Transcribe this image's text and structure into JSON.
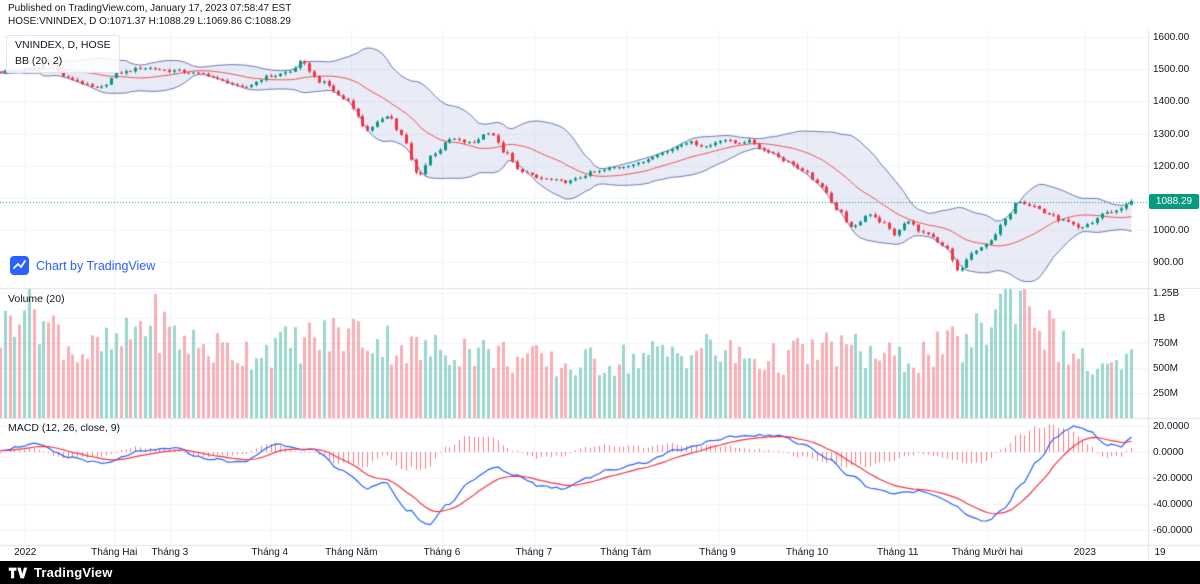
{
  "header": {
    "published_line": "Published on TradingView.com, January 17, 2023 07:58:47 EST",
    "symbol_line": "HOSE:VNINDEX, D O:1071.37 H:1088.29 L:1069.86 C:1088.29"
  },
  "panes": {
    "price": {
      "title": "VNINDEX, D, HOSE",
      "indicator": "BB (20, 2)"
    },
    "volume": {
      "title": "Volume (20)"
    },
    "macd": {
      "title": "MACD (12, 26, close, 9)"
    }
  },
  "watermark": {
    "label": "Chart by TradingView"
  },
  "footer": {
    "brand": "TradingView"
  },
  "price_scale": {
    "ticks": [
      {
        "label": "1600.00",
        "value": 1600
      },
      {
        "label": "1500.00",
        "value": 1500
      },
      {
        "label": "1400.00",
        "value": 1400
      },
      {
        "label": "1300.00",
        "value": 1300
      },
      {
        "label": "1200.00",
        "value": 1200
      },
      {
        "label": "1000.00",
        "value": 1000
      },
      {
        "label": "900.00",
        "value": 900
      }
    ],
    "last_price": {
      "label": "1088.29",
      "value": 1088.29,
      "color": "#089981"
    }
  },
  "volume_scale": {
    "ticks": [
      {
        "label": "1.25B",
        "value": 1250
      },
      {
        "label": "1B",
        "value": 1000
      },
      {
        "label": "750M",
        "value": 750
      },
      {
        "label": "500M",
        "value": 500
      },
      {
        "label": "250M",
        "value": 250
      }
    ]
  },
  "macd_scale": {
    "ticks": [
      {
        "label": "20.0000",
        "value": 20
      },
      {
        "label": "0.0000",
        "value": 0
      },
      {
        "label": "-20.0000",
        "value": -20
      },
      {
        "label": "-40.0000",
        "value": -40
      },
      {
        "label": "-60.0000",
        "value": -60
      }
    ]
  },
  "time_scale": {
    "labels": [
      {
        "label": "2022",
        "f": 0.022
      },
      {
        "label": "Tháng Hai",
        "f": 0.0995
      },
      {
        "label": "Tháng 3",
        "f": 0.148
      },
      {
        "label": "Tháng 4",
        "f": 0.235
      },
      {
        "label": "Tháng Năm",
        "f": 0.306
      },
      {
        "label": "Tháng 6",
        "f": 0.385
      },
      {
        "label": "Tháng 7",
        "f": 0.465
      },
      {
        "label": "Tháng Tám",
        "f": 0.545
      },
      {
        "label": "Tháng 9",
        "f": 0.625
      },
      {
        "label": "Tháng 10",
        "f": 0.703
      },
      {
        "label": "Tháng 11",
        "f": 0.782
      },
      {
        "label": "Tháng Mười hai",
        "f": 0.86
      },
      {
        "label": "2023",
        "f": 0.945
      }
    ],
    "next_label": "19"
  },
  "colors": {
    "up": "#089981",
    "down": "#f23645",
    "vol_up": "rgba(8,153,129,0.4)",
    "vol_down": "rgba(242,54,69,0.4)",
    "bb_fill": "rgba(101,110,196,0.14)",
    "bb_edge": "rgba(73,89,159,0.8)",
    "bb_basis": "#ef5350",
    "macd": "#2962ff",
    "signal": "#f23645",
    "hist": "#f77c80",
    "last_price": "#089981",
    "grid": "#f0f3fa",
    "separator": "#e0e3eb",
    "text": "#131722",
    "accent": "#2962ff"
  },
  "chart_data": [
    {
      "type": "candlestick",
      "symbol": "VNINDEX",
      "exchange": "HOSE",
      "interval": "D",
      "overlays": [
        "Bollinger Bands (20, 2)"
      ],
      "ylim": [
        820,
        1622
      ],
      "gridlines": [
        1600,
        1500,
        1400,
        1300,
        1200,
        1100,
        1000,
        900
      ],
      "bars": 235,
      "last_close": 1088.29,
      "ohlc_last": {
        "open": 1071.37,
        "high": 1088.29,
        "low": 1069.86,
        "close": 1088.29
      },
      "close_anchors": [
        [
          0.0,
          1492
        ],
        [
          0.033,
          1500
        ],
        [
          0.038,
          1528
        ],
        [
          0.06,
          1470
        ],
        [
          0.085,
          1440
        ],
        [
          0.105,
          1490
        ],
        [
          0.125,
          1505
        ],
        [
          0.15,
          1495
        ],
        [
          0.176,
          1485
        ],
        [
          0.195,
          1462
        ],
        [
          0.21,
          1442
        ],
        [
          0.235,
          1478
        ],
        [
          0.253,
          1492
        ],
        [
          0.261,
          1522
        ],
        [
          0.28,
          1460
        ],
        [
          0.301,
          1406
        ],
        [
          0.32,
          1312
        ],
        [
          0.338,
          1358
        ],
        [
          0.349,
          1295
        ],
        [
          0.364,
          1172
        ],
        [
          0.378,
          1240
        ],
        [
          0.393,
          1283
        ],
        [
          0.41,
          1270
        ],
        [
          0.426,
          1305
        ],
        [
          0.44,
          1240
        ],
        [
          0.452,
          1185
        ],
        [
          0.47,
          1160
        ],
        [
          0.493,
          1150
        ],
        [
          0.518,
          1180
        ],
        [
          0.536,
          1195
        ],
        [
          0.554,
          1206
        ],
        [
          0.575,
          1240
        ],
        [
          0.599,
          1274
        ],
        [
          0.615,
          1260
        ],
        [
          0.629,
          1282
        ],
        [
          0.641,
          1270
        ],
        [
          0.651,
          1277
        ],
        [
          0.668,
          1245
        ],
        [
          0.687,
          1211
        ],
        [
          0.7,
          1180
        ],
        [
          0.716,
          1132
        ],
        [
          0.73,
          1060
        ],
        [
          0.742,
          1006
        ],
        [
          0.757,
          1051
        ],
        [
          0.77,
          1020
        ],
        [
          0.779,
          986
        ],
        [
          0.79,
          1027
        ],
        [
          0.805,
          990
        ],
        [
          0.823,
          947
        ],
        [
          0.834,
          874
        ],
        [
          0.848,
          930
        ],
        [
          0.864,
          971
        ],
        [
          0.875,
          1030
        ],
        [
          0.886,
          1093
        ],
        [
          0.9,
          1075
        ],
        [
          0.912,
          1050
        ],
        [
          0.925,
          1030
        ],
        [
          0.941,
          1004
        ],
        [
          0.95,
          1022
        ],
        [
          0.961,
          1052
        ],
        [
          0.972,
          1060
        ],
        [
          0.985,
          1088
        ]
      ]
    },
    {
      "type": "bar",
      "name": "Volume (20)",
      "unit": "M",
      "ylim": [
        0,
        1300
      ],
      "anchors": [
        [
          0.0,
          850
        ],
        [
          0.02,
          1250
        ],
        [
          0.045,
          900
        ],
        [
          0.07,
          650
        ],
        [
          0.1,
          720
        ],
        [
          0.13,
          980
        ],
        [
          0.155,
          800
        ],
        [
          0.18,
          700
        ],
        [
          0.21,
          660
        ],
        [
          0.245,
          720
        ],
        [
          0.275,
          790
        ],
        [
          0.305,
          860
        ],
        [
          0.335,
          760
        ],
        [
          0.37,
          660
        ],
        [
          0.4,
          710
        ],
        [
          0.43,
          640
        ],
        [
          0.46,
          580
        ],
        [
          0.49,
          520
        ],
        [
          0.52,
          560
        ],
        [
          0.55,
          600
        ],
        [
          0.58,
          640
        ],
        [
          0.61,
          700
        ],
        [
          0.64,
          620
        ],
        [
          0.67,
          580
        ],
        [
          0.7,
          640
        ],
        [
          0.73,
          700
        ],
        [
          0.755,
          640
        ],
        [
          0.78,
          580
        ],
        [
          0.8,
          620
        ],
        [
          0.82,
          680
        ],
        [
          0.84,
          740
        ],
        [
          0.855,
          860
        ],
        [
          0.87,
          1150
        ],
        [
          0.883,
          1320
        ],
        [
          0.895,
          1200
        ],
        [
          0.91,
          880
        ],
        [
          0.93,
          680
        ],
        [
          0.948,
          520
        ],
        [
          0.965,
          460
        ],
        [
          0.985,
          560
        ]
      ]
    },
    {
      "type": "line",
      "name": "MACD (12, 26, close, 9)",
      "ylim": [
        -71.5,
        26.2
      ],
      "series": [
        {
          "name": "macd",
          "color": "#2962ff",
          "anchors": [
            [
              0.0,
              2
            ],
            [
              0.03,
              6
            ],
            [
              0.06,
              -4
            ],
            [
              0.09,
              -9
            ],
            [
              0.12,
              0
            ],
            [
              0.15,
              3
            ],
            [
              0.18,
              -5
            ],
            [
              0.21,
              -8
            ],
            [
              0.24,
              6
            ],
            [
              0.27,
              2
            ],
            [
              0.3,
              -15
            ],
            [
              0.32,
              -28
            ],
            [
              0.335,
              -24
            ],
            [
              0.355,
              -45
            ],
            [
              0.372,
              -56
            ],
            [
              0.39,
              -40
            ],
            [
              0.41,
              -22
            ],
            [
              0.43,
              -12
            ],
            [
              0.45,
              -18
            ],
            [
              0.47,
              -26
            ],
            [
              0.49,
              -28
            ],
            [
              0.51,
              -20
            ],
            [
              0.53,
              -14
            ],
            [
              0.56,
              -8
            ],
            [
              0.59,
              2
            ],
            [
              0.62,
              8
            ],
            [
              0.64,
              12
            ],
            [
              0.66,
              13
            ],
            [
              0.68,
              12
            ],
            [
              0.7,
              6
            ],
            [
              0.72,
              -5
            ],
            [
              0.74,
              -18
            ],
            [
              0.76,
              -28
            ],
            [
              0.78,
              -32
            ],
            [
              0.8,
              -30
            ],
            [
              0.815,
              -33
            ],
            [
              0.83,
              -40
            ],
            [
              0.845,
              -50
            ],
            [
              0.858,
              -54
            ],
            [
              0.872,
              -45
            ],
            [
              0.89,
              -25
            ],
            [
              0.905,
              -5
            ],
            [
              0.92,
              12
            ],
            [
              0.935,
              20
            ],
            [
              0.95,
              16
            ],
            [
              0.962,
              6
            ],
            [
              0.975,
              4
            ],
            [
              0.985,
              12
            ]
          ]
        },
        {
          "name": "signal",
          "color": "#f23645",
          "derived": "EMA(9) of macd"
        },
        {
          "name": "histogram",
          "color": "#f77c80",
          "derived": "macd - signal"
        }
      ]
    }
  ]
}
